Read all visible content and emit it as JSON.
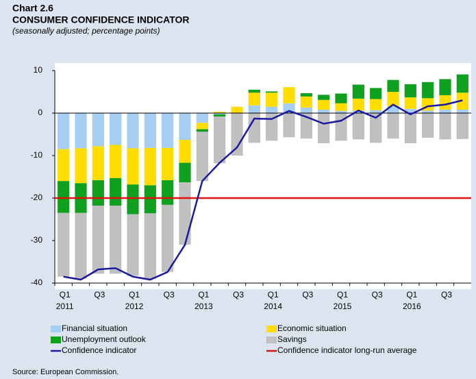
{
  "chart_data": {
    "type": "stacked_bar_line",
    "label": "Chart 2.6",
    "title": "CONSUMER CONFIDENCE INDICATOR",
    "subtitle": "(seasonally adjusted; percentage points)",
    "source": "Source: European Commission.",
    "categories": [
      "Q1",
      null,
      "Q3",
      null,
      "Q1",
      null,
      "Q3",
      null,
      "Q1",
      null,
      "Q3",
      null,
      "Q1",
      null,
      "Q3",
      null,
      "Q1",
      null,
      "Q3",
      null,
      "Q1",
      null,
      "Q3",
      null
    ],
    "years": [
      "2011",
      "2012",
      "2013",
      "2014",
      "2015",
      "2016"
    ],
    "series": [
      {
        "name": "Financial situation",
        "color": "#a6cdf2",
        "values": [
          -8.5,
          -8.3,
          -7.8,
          -7.5,
          -8.3,
          -8.2,
          -8.2,
          -6.3,
          -2.3,
          -0.3,
          0,
          1.8,
          1.5,
          2.3,
          1.3,
          0.8,
          0.5,
          0.6,
          0.7,
          1.6,
          1.0,
          0.6,
          0.8,
          0.8
        ]
      },
      {
        "name": "Economic situation",
        "color": "#ffdd00",
        "values": [
          -7.5,
          -8.2,
          -8.0,
          -7.8,
          -8.5,
          -8.8,
          -7.6,
          -5.4,
          -1.5,
          0.3,
          1.5,
          3.0,
          3.3,
          3.8,
          2.6,
          2.3,
          1.8,
          2.8,
          2.6,
          3.4,
          2.7,
          2.9,
          3.4,
          4.0
        ]
      },
      {
        "name": "Unemployment outlook",
        "color": "#10a020",
        "values": [
          -7.5,
          -7.0,
          -6.0,
          -6.5,
          -7.0,
          -6.6,
          -5.8,
          -4.6,
          -0.6,
          -0.5,
          0,
          0.7,
          0.3,
          0,
          0.8,
          1.2,
          2.3,
          3.3,
          2.6,
          2.8,
          3.1,
          3.8,
          3.8,
          4.3
        ]
      },
      {
        "name": "Savings",
        "color": "#c0c0c0",
        "values": [
          -15.0,
          -15.5,
          -16.0,
          -16.0,
          -14.5,
          -15.4,
          -15.8,
          -14.7,
          -11.6,
          -11.0,
          -10.0,
          -7.0,
          -6.5,
          -5.7,
          -6.0,
          -7.1,
          -6.5,
          -6.2,
          -7.0,
          -6.0,
          -7.1,
          -5.8,
          -6.2,
          -6.1
        ]
      }
    ],
    "line": {
      "name": "Confidence indicator",
      "color": "#1a1aa0",
      "values": [
        -38.5,
        -39.2,
        -36.8,
        -36.5,
        -38.5,
        -39.2,
        -37.4,
        -31.0,
        -16.0,
        -11.7,
        -8.1,
        -1.3,
        -1.4,
        0.5,
        -0.9,
        -2.5,
        -1.8,
        0.6,
        -1.1,
        2.0,
        -0.3,
        1.6,
        2.0,
        3.0
      ]
    },
    "reference_line": {
      "name": "Confidence indicator long-run average",
      "color": "#e01010",
      "value": -20
    },
    "ylim": [
      -40,
      10
    ],
    "yticks": [
      10,
      0,
      -10,
      -20,
      -30,
      -40
    ],
    "grid": false
  }
}
